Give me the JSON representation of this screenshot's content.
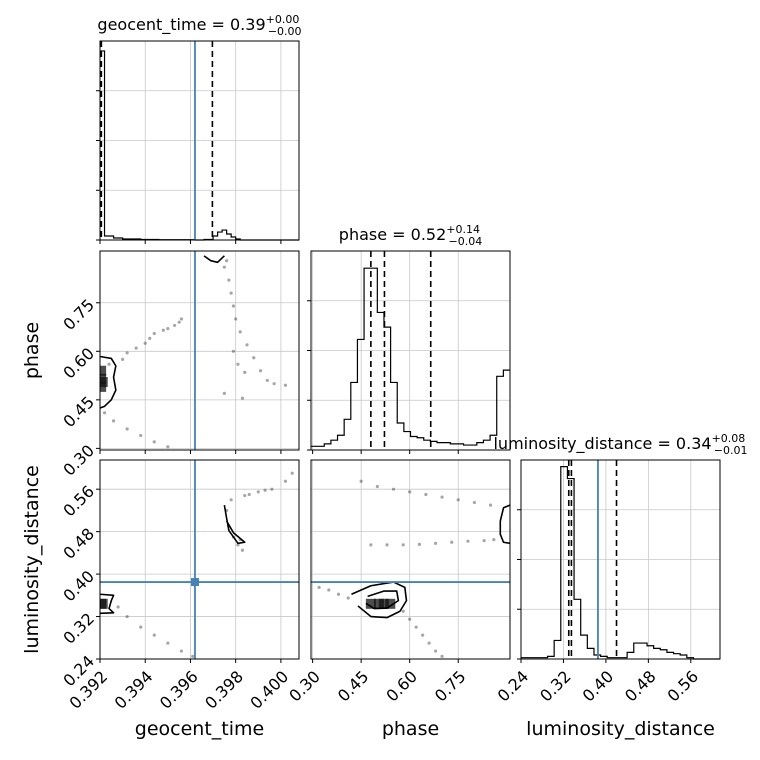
{
  "chart_data": {
    "type": "corner",
    "parameters": [
      "geocent_time",
      "phase",
      "luminosity_distance"
    ],
    "truth_color": "#4682b4",
    "truths": {
      "geocent_time": 0.3962,
      "phase": null,
      "luminosity_distance": 0.385
    },
    "axes": {
      "geocent_time": {
        "range": [
          0.392,
          0.4008
        ],
        "ticks": [
          0.392,
          0.394,
          0.396,
          0.398,
          0.4
        ],
        "tick_labels": [
          "0.392",
          "0.394",
          "0.396",
          "0.398",
          "0.400"
        ]
      },
      "phase": {
        "range": [
          0.295,
          0.91
        ],
        "ticks": [
          0.3,
          0.45,
          0.6,
          0.75
        ],
        "tick_labels": [
          "0.30",
          "0.45",
          "0.60",
          "0.75"
        ]
      },
      "luminosity_distance": {
        "range": [
          0.24,
          0.615
        ],
        "ticks": [
          0.24,
          0.32,
          0.4,
          0.48,
          0.56
        ],
        "tick_labels": [
          "0.24",
          "0.32",
          "0.40",
          "0.48",
          "0.56"
        ]
      }
    },
    "marginals": {
      "geocent_time": {
        "title_param": "geocent_time",
        "title_value": "0.39",
        "title_plus": "+0.00",
        "title_minus": "−0.00",
        "quantiles": [
          0.39205,
          0.39206,
          0.39697
        ],
        "bins": [
          0.392,
          0.3922,
          0.3924,
          0.3926,
          0.3928,
          0.393,
          0.3932,
          0.3934,
          0.3936,
          0.3938,
          0.394,
          0.3942,
          0.3944,
          0.3946,
          0.3948,
          0.395,
          0.3952,
          0.3954,
          0.3956,
          0.3958,
          0.396,
          0.3962,
          0.3964,
          0.3966,
          0.3968,
          0.397,
          0.3972,
          0.3974,
          0.3976,
          0.3978,
          0.398,
          0.3982,
          0.3984,
          0.3986,
          0.3988,
          0.399,
          0.3992,
          0.3994,
          0.3996,
          0.3998,
          0.4,
          0.4002,
          0.4004,
          0.4006,
          0.4008
        ],
        "counts": [
          190,
          4,
          4,
          2,
          2,
          1,
          1,
          1,
          1,
          0.5,
          0.5,
          0.5,
          0.5,
          0.3,
          0.3,
          0.3,
          0.3,
          0.3,
          0.3,
          0.3,
          0.3,
          0,
          0,
          0.5,
          0.5,
          4,
          8,
          10,
          6,
          3,
          1,
          0,
          0,
          0,
          0,
          0,
          0,
          0,
          0,
          0,
          0,
          0,
          0,
          0
        ],
        "ylim": [
          0,
          200
        ]
      },
      "phase": {
        "title_param": "phase",
        "title_value": "0.52",
        "title_plus": "+0.14",
        "title_minus": "−0.04",
        "quantiles": [
          0.48,
          0.522,
          0.665
        ],
        "bins": [
          0.295,
          0.3155,
          0.336,
          0.3565,
          0.377,
          0.3975,
          0.418,
          0.4385,
          0.459,
          0.4795,
          0.5,
          0.5205,
          0.541,
          0.5615,
          0.582,
          0.6025,
          0.623,
          0.6435,
          0.664,
          0.6845,
          0.705,
          0.7255,
          0.746,
          0.7665,
          0.787,
          0.8075,
          0.828,
          0.8485,
          0.869,
          0.8895,
          0.91
        ],
        "counts": [
          3,
          3,
          5,
          8,
          12,
          25,
          55,
          90,
          148,
          148,
          112,
          100,
          55,
          22,
          15,
          11,
          10,
          8,
          7,
          6,
          6,
          5,
          5,
          4,
          4,
          6,
          8,
          12,
          60,
          65
        ],
        "ylim": [
          0,
          162
        ]
      },
      "luminosity_distance": {
        "title_param": "luminosity_distance",
        "title_value": "0.34",
        "title_plus": "+0.08",
        "title_minus": "−0.01",
        "quantiles": [
          0.33,
          0.335,
          0.42
        ],
        "bins": [
          0.24,
          0.2525,
          0.265,
          0.2775,
          0.29,
          0.3025,
          0.315,
          0.3275,
          0.34,
          0.3525,
          0.365,
          0.3775,
          0.39,
          0.4025,
          0.415,
          0.4275,
          0.44,
          0.4525,
          0.465,
          0.4775,
          0.49,
          0.5025,
          0.515,
          0.5275,
          0.54,
          0.5525,
          0.565,
          0.5775,
          0.59,
          0.6025,
          0.615
        ],
        "counts": [
          1,
          1,
          1,
          1,
          2,
          14,
          145,
          136,
          45,
          18,
          8,
          3,
          2,
          1,
          1,
          1,
          5,
          12,
          12,
          10,
          8,
          7,
          5,
          4,
          3,
          1,
          0,
          0,
          0,
          0
        ],
        "ylim": [
          0,
          150
        ]
      }
    },
    "pairs": [
      {
        "x": "geocent_time",
        "y": "phase",
        "contours": [
          [
            [
              0.392,
              0.584
            ],
            [
              0.3925,
              0.578
            ],
            [
              0.3927,
              0.555
            ],
            [
              0.3926,
              0.52
            ],
            [
              0.3927,
              0.48
            ],
            [
              0.3925,
              0.45
            ],
            [
              0.3922,
              0.43
            ],
            [
              0.392,
              0.425
            ]
          ],
          [
            [
              0.3966,
              0.895
            ],
            [
              0.3969,
              0.88
            ],
            [
              0.3972,
              0.875
            ],
            [
              0.3975,
              0.895
            ]
          ]
        ],
        "points": [
          [
            0.3924,
            0.56
          ],
          [
            0.393,
            0.575
          ],
          [
            0.3936,
            0.61
          ],
          [
            0.3942,
            0.64
          ],
          [
            0.3948,
            0.665
          ],
          [
            0.3953,
            0.68
          ],
          [
            0.3956,
            0.7
          ],
          [
            0.3932,
            0.595
          ],
          [
            0.394,
            0.625
          ],
          [
            0.395,
            0.67
          ],
          [
            0.3944,
            0.655
          ],
          [
            0.3955,
            0.69
          ],
          [
            0.3922,
            0.41
          ],
          [
            0.3926,
            0.385
          ],
          [
            0.3932,
            0.36
          ],
          [
            0.3938,
            0.34
          ],
          [
            0.3944,
            0.32
          ],
          [
            0.395,
            0.305
          ],
          [
            0.3975,
            0.86
          ],
          [
            0.3977,
            0.82
          ],
          [
            0.3978,
            0.78
          ],
          [
            0.3979,
            0.74
          ],
          [
            0.398,
            0.7
          ],
          [
            0.3982,
            0.66
          ],
          [
            0.3985,
            0.62
          ],
          [
            0.3988,
            0.58
          ],
          [
            0.3991,
            0.54
          ],
          [
            0.3994,
            0.51
          ],
          [
            0.3997,
            0.5
          ],
          [
            0.4002,
            0.495
          ],
          [
            0.3981,
            0.56
          ],
          [
            0.3984,
            0.535
          ],
          [
            0.3979,
            0.6
          ],
          [
            0.3975,
            0.47
          ],
          [
            0.3983,
            0.455
          ],
          [
            0.3976,
            0.88
          ]
        ],
        "dense": [
          [
            0.39205,
            0.49
          ],
          [
            0.39205,
            0.515
          ],
          [
            0.39205,
            0.54
          ],
          [
            0.39212,
            0.505
          ]
        ]
      },
      {
        "x": "geocent_time",
        "y": "luminosity_distance",
        "contours": [
          [
            [
              0.392,
              0.362
            ],
            [
              0.3926,
              0.36
            ],
            [
              0.3925,
              0.35
            ],
            [
              0.3924,
              0.335
            ],
            [
              0.3926,
              0.327
            ],
            [
              0.392,
              0.326
            ]
          ],
          [
            [
              0.3975,
              0.53
            ],
            [
              0.3976,
              0.505
            ],
            [
              0.3977,
              0.482
            ],
            [
              0.3981,
              0.458
            ],
            [
              0.3984,
              0.46
            ],
            [
              0.3979,
              0.478
            ],
            [
              0.3976,
              0.5
            ]
          ]
        ],
        "points": [
          [
            0.3928,
            0.338
          ],
          [
            0.3932,
            0.32
          ],
          [
            0.3938,
            0.3
          ],
          [
            0.3944,
            0.285
          ],
          [
            0.395,
            0.27
          ],
          [
            0.3956,
            0.255
          ],
          [
            0.3961,
            0.245
          ],
          [
            0.3978,
            0.54
          ],
          [
            0.3984,
            0.548
          ],
          [
            0.399,
            0.555
          ],
          [
            0.3996,
            0.56
          ],
          [
            0.4002,
            0.575
          ],
          [
            0.4005,
            0.59
          ],
          [
            0.3976,
            0.52
          ],
          [
            0.3979,
            0.47
          ],
          [
            0.3983,
            0.445
          ],
          [
            0.3981,
            0.455
          ],
          [
            0.3982,
            0.465
          ],
          [
            0.3986,
            0.55
          ],
          [
            0.3993,
            0.558
          ]
        ],
        "dense": [
          [
            0.39212,
            0.344
          ],
          [
            0.39205,
            0.344
          ]
        ]
      },
      {
        "x": "phase",
        "y": "luminosity_distance",
        "contours": [
          [
            [
              0.47,
              0.358
            ],
            [
              0.52,
              0.368
            ],
            [
              0.56,
              0.368
            ],
            [
              0.565,
              0.35
            ],
            [
              0.53,
              0.336
            ],
            [
              0.49,
              0.335
            ],
            [
              0.465,
              0.345
            ]
          ],
          [
            [
              0.42,
              0.362
            ],
            [
              0.48,
              0.378
            ],
            [
              0.55,
              0.385
            ],
            [
              0.585,
              0.375
            ],
            [
              0.59,
              0.35
            ],
            [
              0.57,
              0.33
            ],
            [
              0.53,
              0.318
            ],
            [
              0.48,
              0.32
            ],
            [
              0.44,
              0.34
            ]
          ],
          [
            [
              0.91,
              0.53
            ],
            [
              0.89,
              0.525
            ],
            [
              0.88,
              0.5
            ],
            [
              0.88,
              0.475
            ],
            [
              0.89,
              0.46
            ],
            [
              0.91,
              0.458
            ]
          ]
        ],
        "points": [
          [
            0.32,
            0.375
          ],
          [
            0.35,
            0.37
          ],
          [
            0.38,
            0.362
          ],
          [
            0.41,
            0.355
          ],
          [
            0.58,
            0.33
          ],
          [
            0.6,
            0.315
          ],
          [
            0.62,
            0.3
          ],
          [
            0.64,
            0.285
          ],
          [
            0.66,
            0.27
          ],
          [
            0.68,
            0.255
          ],
          [
            0.7,
            0.245
          ],
          [
            0.45,
            0.575
          ],
          [
            0.5,
            0.565
          ],
          [
            0.55,
            0.56
          ],
          [
            0.6,
            0.555
          ],
          [
            0.65,
            0.55
          ],
          [
            0.7,
            0.545
          ],
          [
            0.75,
            0.54
          ],
          [
            0.8,
            0.535
          ],
          [
            0.85,
            0.53
          ],
          [
            0.48,
            0.455
          ],
          [
            0.53,
            0.455
          ],
          [
            0.58,
            0.455
          ],
          [
            0.63,
            0.456
          ],
          [
            0.68,
            0.458
          ],
          [
            0.73,
            0.46
          ],
          [
            0.78,
            0.462
          ],
          [
            0.83,
            0.463
          ],
          [
            0.86,
            0.465
          ]
        ],
        "dense": [
          [
            0.505,
            0.344
          ],
          [
            0.52,
            0.344
          ],
          [
            0.54,
            0.344
          ],
          [
            0.48,
            0.344
          ]
        ]
      }
    ]
  }
}
